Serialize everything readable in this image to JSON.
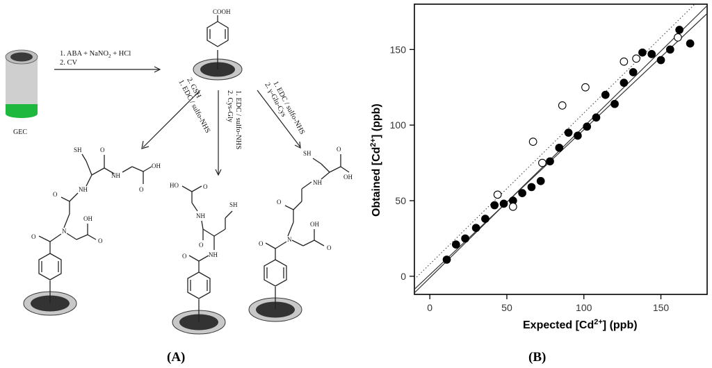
{
  "panel_a": {
    "label": "(A)",
    "electrode_label": "GEC",
    "top_group": "COOH",
    "step_main": [
      "1. ABA + NaNO",
      "2",
      " + HCl",
      "2. CV"
    ],
    "step_left": [
      "1. EDC / sulfo-NHS",
      "2. GSH"
    ],
    "step_middle": [
      "1. EDC / sulfo-NHS",
      "2. Cys-Gly"
    ],
    "step_right": [
      "1. EDC / sulfo-NHS",
      "2. γ-Glu-Cys"
    ],
    "atoms": {
      "sh": "SH",
      "nh": "NH",
      "n": "N",
      "o": "O",
      "oh": "OH",
      "ho": "HO"
    }
  },
  "panel_b": {
    "label": "(B)"
  },
  "colors": {
    "electrode_body": "#cfcfcf",
    "electrode_band": "#1db83d",
    "electrode_top": "#3a3a3a",
    "surface_outer": "#c8c8c8",
    "surface_inner": "#333333"
  },
  "chart_data": {
    "type": "scatter",
    "xlabel": "Expected [Cd2+] (ppb)",
    "ylabel": "Obtained [Cd2+] (ppb)",
    "xlim": [
      -10,
      180
    ],
    "ylim": [
      -12,
      180
    ],
    "xticks": [
      0,
      50,
      100,
      150
    ],
    "yticks": [
      0,
      50,
      100,
      150
    ],
    "series": [
      {
        "marker": "filled-circle",
        "points": [
          [
            11,
            11
          ],
          [
            17,
            21
          ],
          [
            23,
            25
          ],
          [
            30,
            32
          ],
          [
            36,
            38
          ],
          [
            42,
            47
          ],
          [
            48,
            48
          ],
          [
            54,
            50
          ],
          [
            60,
            55
          ],
          [
            66,
            59
          ],
          [
            72,
            63
          ],
          [
            78,
            76
          ],
          [
            84,
            85
          ],
          [
            90,
            95
          ],
          [
            96,
            93
          ],
          [
            102,
            99
          ],
          [
            108,
            105
          ],
          [
            114,
            120
          ],
          [
            120,
            114
          ],
          [
            126,
            128
          ],
          [
            132,
            135
          ],
          [
            138,
            148
          ],
          [
            144,
            147
          ],
          [
            150,
            143
          ],
          [
            156,
            150
          ],
          [
            162,
            163
          ],
          [
            169,
            154
          ]
        ]
      },
      {
        "marker": "open-circle",
        "points": [
          [
            44,
            54
          ],
          [
            54,
            46
          ],
          [
            67,
            89
          ],
          [
            73,
            75
          ],
          [
            86,
            113
          ],
          [
            101,
            125
          ],
          [
            126,
            142
          ],
          [
            134,
            144
          ],
          [
            161,
            158
          ]
        ]
      }
    ],
    "lines": [
      {
        "style": "solid",
        "slope": 1.0,
        "intercept": -1
      },
      {
        "style": "solid",
        "slope": 0.96,
        "intercept": 1
      },
      {
        "style": "dotted",
        "slope": 1.0,
        "intercept": 8
      }
    ]
  }
}
